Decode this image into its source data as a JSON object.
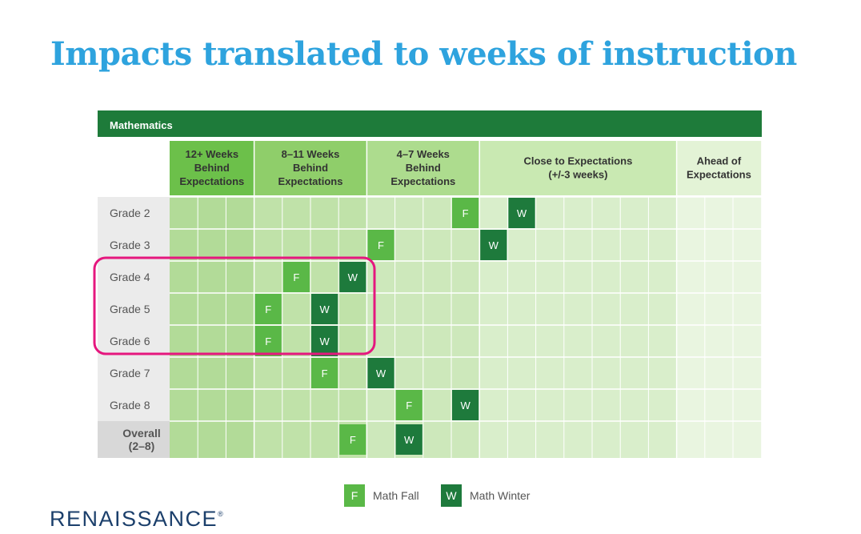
{
  "title": "Impacts translated to weeks of instruction",
  "chart_data": {
    "type": "table",
    "subject": "Mathematics",
    "bands": [
      {
        "label": [
          "12+ Weeks",
          "Behind",
          "Expectations"
        ],
        "columns": 3
      },
      {
        "label": [
          "8–11 Weeks",
          "Behind",
          "Expectations"
        ],
        "columns": 4
      },
      {
        "label": [
          "4–7 Weeks",
          "Behind",
          "Expectations"
        ],
        "columns": 4
      },
      {
        "label": [
          "Close to Expectations",
          "(+/-3 weeks)"
        ],
        "columns": 7
      },
      {
        "label": [
          "Ahead of",
          "Expectations"
        ],
        "columns": 3
      }
    ],
    "rows": [
      {
        "label": [
          "Grade 2"
        ],
        "fall_column": 10,
        "winter_column": 12
      },
      {
        "label": [
          "Grade 3"
        ],
        "fall_column": 7,
        "winter_column": 11
      },
      {
        "label": [
          "Grade 4"
        ],
        "fall_column": 4,
        "winter_column": 6
      },
      {
        "label": [
          "Grade 5"
        ],
        "fall_column": 3,
        "winter_column": 5
      },
      {
        "label": [
          "Grade 6"
        ],
        "fall_column": 3,
        "winter_column": 5
      },
      {
        "label": [
          "Grade 7"
        ],
        "fall_column": 5,
        "winter_column": 7
      },
      {
        "label": [
          "Grade 8"
        ],
        "fall_column": 8,
        "winter_column": 10
      },
      {
        "label": [
          "Overall",
          "(2–8)"
        ],
        "fall_column": 6,
        "winter_column": 8
      }
    ],
    "highlighted_rows": [
      "Grade 4",
      "Grade 5",
      "Grade 6"
    ],
    "legend": [
      {
        "symbol": "F",
        "name": "Math Fall",
        "color": "#5ab847"
      },
      {
        "symbol": "W",
        "name": "Math Winter",
        "color": "#1e7a3c"
      }
    ]
  },
  "colors": {
    "title": "#2ea3de",
    "subject_bar": "#1e7b3a",
    "band_headers": [
      "#6cc04a",
      "#8fce6a",
      "#addc8e",
      "#c9e9b2",
      "#e3f3d6"
    ],
    "band_cells": [
      "#b2db98",
      "#c0e2a9",
      "#cde8bb",
      "#d9eecb",
      "#e9f5e0"
    ],
    "highlight": "#e5177e",
    "fall": "#5ab847",
    "winter": "#1e7a3c"
  },
  "logo": {
    "text": "RENAISSANCE",
    "mark": "®"
  }
}
